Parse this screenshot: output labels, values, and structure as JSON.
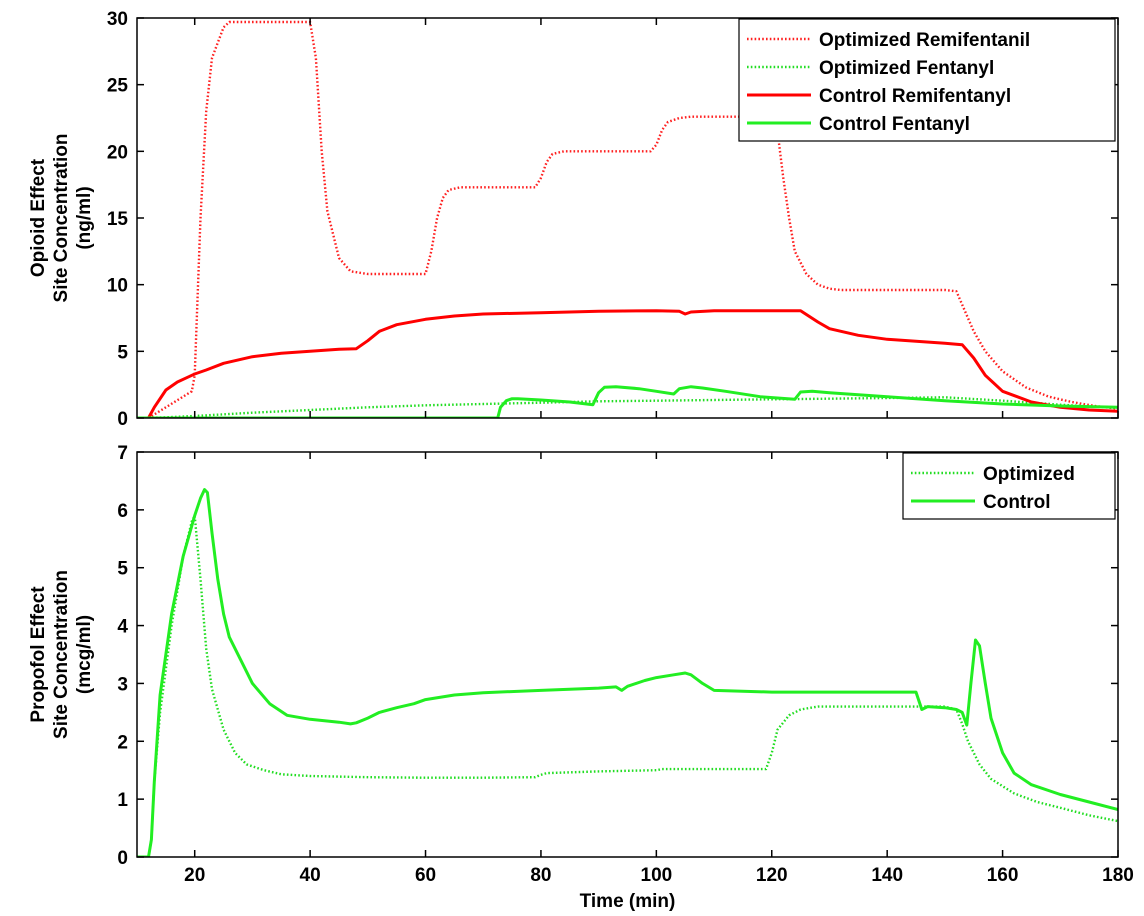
{
  "chart_data": [
    {
      "type": "line",
      "ylabel": [
        "Opioid Effect",
        "Site Concentration",
        "(ng/ml)"
      ],
      "xlabel": "",
      "xlim": [
        10,
        180
      ],
      "ylim": [
        0,
        30
      ],
      "xticks": [
        20,
        40,
        60,
        80,
        100,
        120,
        140,
        160,
        180
      ],
      "xtick_labels": [
        "",
        "",
        "",
        "",
        "",
        "",
        "",
        "",
        ""
      ],
      "yticks": [
        0,
        5,
        10,
        15,
        20,
        25,
        30
      ],
      "ytick_labels": [
        "0",
        "5",
        "10",
        "15",
        "20",
        "25",
        "30"
      ],
      "grid": false,
      "legend_position": "top-right",
      "series": [
        {
          "name": "Optimized Remifentanil",
          "color": "#ff2020",
          "style": "dotted",
          "x": [
            10,
            12,
            19.5,
            20,
            21,
            22,
            23,
            25,
            26,
            40,
            41,
            42,
            43,
            45,
            47,
            50,
            60,
            61,
            62,
            63,
            64,
            66,
            70,
            79,
            80,
            81,
            82,
            84,
            86,
            90,
            99,
            100,
            101,
            102,
            104,
            106,
            118,
            121,
            122,
            123,
            124,
            126,
            128,
            130,
            132,
            135,
            150,
            152,
            153,
            155,
            157,
            160,
            164,
            168,
            172,
            176,
            180
          ],
          "y": [
            0,
            0,
            2,
            3.2,
            15,
            23,
            27,
            29.3,
            29.7,
            29.7,
            27,
            20,
            15.5,
            12,
            11,
            10.8,
            10.8,
            12.5,
            15,
            16.5,
            17.1,
            17.3,
            17.3,
            17.3,
            18,
            19.2,
            19.8,
            20,
            20,
            20,
            20,
            20.5,
            21.6,
            22.2,
            22.5,
            22.6,
            22.6,
            21.5,
            18,
            15,
            12.5,
            10.8,
            10,
            9.7,
            9.6,
            9.6,
            9.6,
            9.5,
            8.5,
            6.5,
            5,
            3.5,
            2.3,
            1.6,
            1.2,
            0.9,
            0.7
          ]
        },
        {
          "name": "Optimized Fentanyl",
          "color": "#22dd22",
          "style": "dotted",
          "x": [
            10,
            15,
            20,
            30,
            40,
            50,
            60,
            70,
            80,
            90,
            100,
            110,
            120,
            130,
            140,
            150,
            160,
            170,
            180
          ],
          "y": [
            0,
            0.05,
            0.15,
            0.4,
            0.6,
            0.8,
            0.95,
            1.05,
            1.15,
            1.25,
            1.3,
            1.35,
            1.4,
            1.45,
            1.5,
            1.55,
            1.3,
            1.0,
            0.75
          ]
        },
        {
          "name": "Control Remifentanyl",
          "color": "#ff0000",
          "style": "solid",
          "x": [
            10,
            12,
            13,
            15,
            17,
            19,
            20,
            22,
            25,
            30,
            35,
            40,
            45,
            48,
            50,
            52,
            55,
            60,
            65,
            70,
            80,
            90,
            100,
            104,
            105,
            106,
            110,
            120,
            125,
            128,
            130,
            135,
            140,
            150,
            153,
            155,
            157,
            160,
            165,
            170,
            175,
            180
          ],
          "y": [
            0,
            0,
            0.8,
            2.1,
            2.7,
            3.1,
            3.3,
            3.6,
            4.1,
            4.6,
            4.85,
            5,
            5.15,
            5.2,
            5.8,
            6.5,
            7,
            7.4,
            7.65,
            7.8,
            7.9,
            8,
            8.05,
            8,
            7.8,
            7.95,
            8.05,
            8.05,
            8.05,
            7.2,
            6.7,
            6.2,
            5.9,
            5.6,
            5.5,
            4.5,
            3.2,
            2,
            1.2,
            0.8,
            0.6,
            0.5
          ]
        },
        {
          "name": "Control Fentanyl",
          "color": "#22ee22",
          "style": "solid",
          "x": [
            10,
            20,
            40,
            60,
            72.5,
            73,
            74,
            75,
            76,
            80,
            85,
            89,
            90,
            91,
            93,
            97,
            100,
            103,
            104,
            106,
            108,
            112,
            118,
            124,
            125,
            127,
            130,
            140,
            150,
            160,
            170,
            180
          ],
          "y": [
            0,
            0,
            0,
            0,
            0,
            0.8,
            1.3,
            1.45,
            1.45,
            1.35,
            1.2,
            1.0,
            1.9,
            2.3,
            2.35,
            2.2,
            2.0,
            1.8,
            2.2,
            2.35,
            2.25,
            2.0,
            1.6,
            1.4,
            1.95,
            2.0,
            1.9,
            1.6,
            1.3,
            1.05,
            0.9,
            0.8
          ]
        }
      ]
    },
    {
      "type": "line",
      "ylabel": [
        "Propofol Effect",
        "Site Concentration",
        "(mcg/ml)"
      ],
      "xlabel": "Time (min)",
      "xlim": [
        10,
        180
      ],
      "ylim": [
        0,
        7
      ],
      "xticks": [
        20,
        40,
        60,
        80,
        100,
        120,
        140,
        160,
        180
      ],
      "xtick_labels": [
        "20",
        "40",
        "60",
        "80",
        "100",
        "120",
        "140",
        "160",
        "180"
      ],
      "yticks": [
        0,
        1,
        2,
        3,
        4,
        5,
        6,
        7
      ],
      "ytick_labels": [
        "0",
        "1",
        "2",
        "3",
        "4",
        "5",
        "6",
        "7"
      ],
      "grid": false,
      "legend_position": "top-right",
      "series": [
        {
          "name": "Optimized",
          "color": "#22dd22",
          "style": "dotted",
          "x": [
            10,
            12,
            12.5,
            13,
            14,
            16,
            18,
            19.5,
            20,
            21,
            22,
            23,
            25,
            27,
            29,
            32,
            35,
            40,
            50,
            60,
            70,
            79,
            80,
            81,
            90,
            100,
            101,
            110,
            119,
            120,
            121,
            123,
            125,
            128,
            130,
            140,
            150,
            152,
            153,
            154,
            156,
            158,
            162,
            166,
            170,
            175,
            180
          ],
          "y": [
            0,
            0,
            0.3,
            1.3,
            2.5,
            4.0,
            5.2,
            5.8,
            5.9,
            4.8,
            3.6,
            2.9,
            2.2,
            1.8,
            1.6,
            1.5,
            1.43,
            1.4,
            1.38,
            1.37,
            1.37,
            1.38,
            1.42,
            1.45,
            1.48,
            1.5,
            1.52,
            1.52,
            1.52,
            1.8,
            2.2,
            2.45,
            2.55,
            2.6,
            2.6,
            2.6,
            2.6,
            2.55,
            2.3,
            2.0,
            1.6,
            1.35,
            1.1,
            0.95,
            0.85,
            0.72,
            0.62
          ]
        },
        {
          "name": "Control",
          "color": "#22ee22",
          "style": "solid",
          "x": [
            10,
            12,
            12.5,
            13,
            14,
            16,
            18,
            20,
            21,
            21.7,
            22.2,
            23,
            24,
            25,
            26,
            28,
            30,
            33,
            36,
            40,
            45,
            47,
            48,
            50,
            52,
            55,
            58,
            60,
            65,
            70,
            80,
            90,
            93,
            94,
            95,
            98,
            100,
            103,
            105,
            106,
            108,
            110,
            120,
            130,
            140,
            145,
            146,
            147,
            150,
            152,
            153,
            153.8,
            154.5,
            155.3,
            156,
            157,
            158,
            160,
            162,
            165,
            170,
            175,
            180
          ],
          "y": [
            0,
            0,
            0.3,
            1.3,
            2.8,
            4.2,
            5.2,
            5.9,
            6.2,
            6.35,
            6.3,
            5.6,
            4.8,
            4.2,
            3.8,
            3.4,
            3.0,
            2.65,
            2.45,
            2.38,
            2.33,
            2.3,
            2.32,
            2.4,
            2.5,
            2.58,
            2.65,
            2.72,
            2.8,
            2.84,
            2.88,
            2.92,
            2.94,
            2.88,
            2.95,
            3.05,
            3.1,
            3.15,
            3.18,
            3.15,
            3.0,
            2.88,
            2.85,
            2.85,
            2.85,
            2.85,
            2.55,
            2.6,
            2.58,
            2.55,
            2.5,
            2.28,
            3.0,
            3.75,
            3.65,
            3.0,
            2.4,
            1.8,
            1.45,
            1.25,
            1.08,
            0.95,
            0.82
          ]
        }
      ]
    }
  ]
}
